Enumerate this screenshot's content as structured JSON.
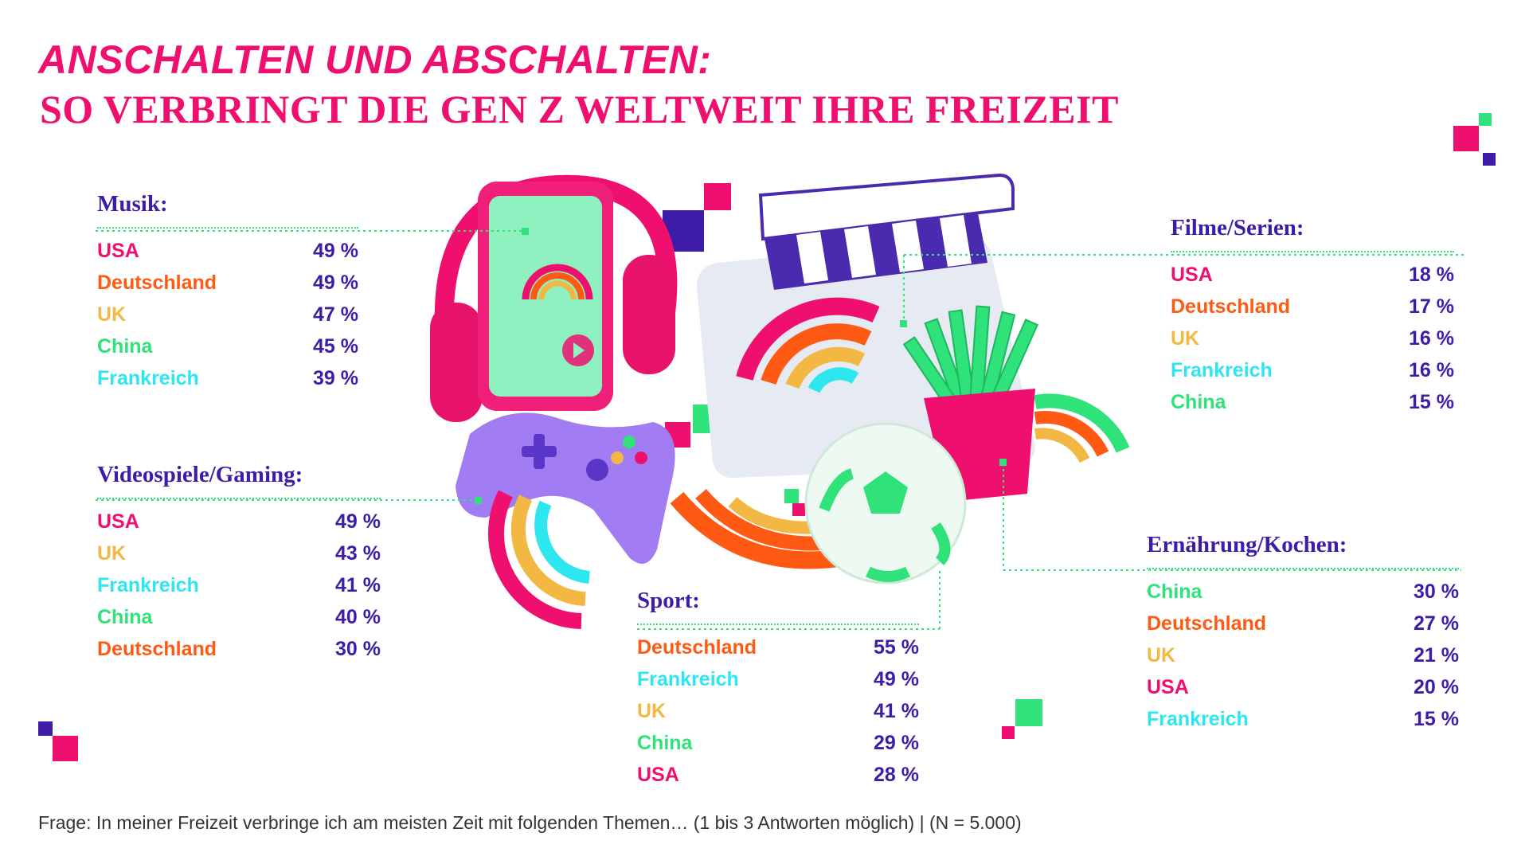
{
  "title": "ANSCHALTEN UND ABSCHALTEN:",
  "subtitle": "SO VERBRINGT DIE GEN Z WELTWEIT IHRE FREIZEIT",
  "footnote": "Frage: In meiner Freizeit verbringe ich am meisten Zeit mit folgenden Themen… (1 bis 3 Antworten möglich) | (N = 5.000)",
  "colors": {
    "title": "#ee0f6e",
    "heading": "#3d1da8",
    "value": "#3d1da8",
    "leader_line": "#2fe27a",
    "USA": "#ee0f6e",
    "Deutschland": "#ff5a14",
    "UK": "#f2b843",
    "China": "#2fe27a",
    "Frankreich": "#2ee6f0"
  },
  "decorations": {
    "icons": [
      "headphones-icon",
      "music-player-icon",
      "clapperboard-icon",
      "fries-icon",
      "game-controller-icon",
      "soccer-ball-icon"
    ]
  },
  "chart_data": [
    {
      "type": "table",
      "title": "Musik:",
      "unit": "%",
      "rows": [
        {
          "label": "USA",
          "value": 49,
          "display": "49 %"
        },
        {
          "label": "Deutschland",
          "value": 49,
          "display": "49 %"
        },
        {
          "label": "UK",
          "value": 47,
          "display": "47 %"
        },
        {
          "label": "China",
          "value": 45,
          "display": "45 %"
        },
        {
          "label": "Frankreich",
          "value": 39,
          "display": "39 %"
        }
      ]
    },
    {
      "type": "table",
      "title": "Videospiele/Gaming:",
      "unit": "%",
      "rows": [
        {
          "label": "USA",
          "value": 49,
          "display": "49 %"
        },
        {
          "label": "UK",
          "value": 43,
          "display": "43 %"
        },
        {
          "label": "Frankreich",
          "value": 41,
          "display": "41 %"
        },
        {
          "label": "China",
          "value": 40,
          "display": "40 %"
        },
        {
          "label": "Deutschland",
          "value": 30,
          "display": "30 %"
        }
      ]
    },
    {
      "type": "table",
      "title": "Sport:",
      "unit": "%",
      "rows": [
        {
          "label": "Deutschland",
          "value": 55,
          "display": "55 %"
        },
        {
          "label": "Frankreich",
          "value": 49,
          "display": "49 %"
        },
        {
          "label": "UK",
          "value": 41,
          "display": "41 %"
        },
        {
          "label": "China",
          "value": 29,
          "display": "29 %"
        },
        {
          "label": "USA",
          "value": 28,
          "display": "28 %"
        }
      ]
    },
    {
      "type": "table",
      "title": "Filme/Serien:",
      "unit": "%",
      "rows": [
        {
          "label": "USA",
          "value": 18,
          "display": "18 %"
        },
        {
          "label": "Deutschland",
          "value": 17,
          "display": "17 %"
        },
        {
          "label": "UK",
          "value": 16,
          "display": "16 %"
        },
        {
          "label": "Frankreich",
          "value": 16,
          "display": "16 %"
        },
        {
          "label": "China",
          "value": 15,
          "display": "15 %"
        }
      ]
    },
    {
      "type": "table",
      "title": "Ernährung/Kochen:",
      "unit": "%",
      "rows": [
        {
          "label": "China",
          "value": 30,
          "display": "30 %"
        },
        {
          "label": "Deutschland",
          "value": 27,
          "display": "27 %"
        },
        {
          "label": "UK",
          "value": 21,
          "display": "21 %"
        },
        {
          "label": "USA",
          "value": 20,
          "display": "20 %"
        },
        {
          "label": "Frankreich",
          "value": 15,
          "display": "15 %"
        }
      ]
    }
  ]
}
